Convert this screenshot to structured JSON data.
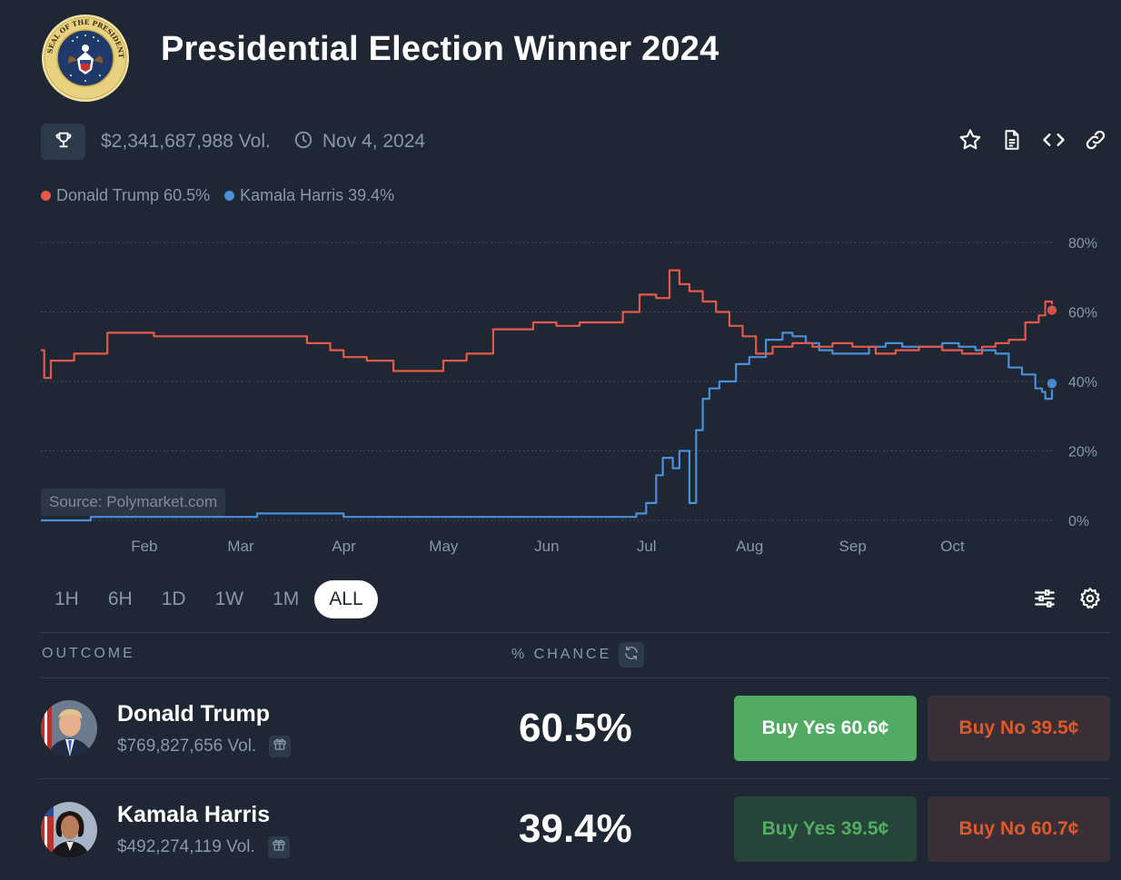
{
  "header": {
    "title": "Presidential Election Winner 2024",
    "seal_text": "SEAL OF THE PRESIDENT OF THE UNITED STATES"
  },
  "meta": {
    "volume": "$2,341,687,988 Vol.",
    "date": "Nov 4, 2024"
  },
  "legend": [
    {
      "label": "Donald Trump 60.5%",
      "color": "#e5584a"
    },
    {
      "label": "Kamala Harris 39.4%",
      "color": "#4a90d9"
    }
  ],
  "chart_data": {
    "type": "line",
    "y_tick_labels": [
      "80%",
      "60%",
      "40%",
      "20%",
      "0%"
    ],
    "y_ticks": [
      80,
      60,
      40,
      20,
      0
    ],
    "ylim": [
      0,
      80
    ],
    "x_tick_labels": [
      "Feb",
      "Mar",
      "Apr",
      "May",
      "Jun",
      "Jul",
      "Aug",
      "Sep",
      "Oct"
    ],
    "x_ticks": [
      "2024-02-01",
      "2024-03-01",
      "2024-04-01",
      "2024-05-01",
      "2024-06-01",
      "2024-07-01",
      "2024-08-01",
      "2024-09-01",
      "2024-10-01"
    ],
    "xlim": [
      "2024-01-05",
      "2024-11-04"
    ],
    "grid": true,
    "source": "Source: Polymarket.com",
    "series": [
      {
        "name": "Donald Trump",
        "color": "#e5584a",
        "x": [
          "2024-01-05",
          "2024-01-06",
          "2024-01-08",
          "2024-01-15",
          "2024-01-23",
          "2024-01-25",
          "2024-02-08",
          "2024-02-15",
          "2024-02-25",
          "2024-03-05",
          "2024-03-15",
          "2024-03-25",
          "2024-04-01",
          "2024-04-05",
          "2024-04-12",
          "2024-04-20",
          "2024-04-28",
          "2024-05-05",
          "2024-05-12",
          "2024-05-20",
          "2024-05-27",
          "2024-06-01",
          "2024-06-08",
          "2024-06-15",
          "2024-06-22",
          "2024-06-28",
          "2024-07-03",
          "2024-07-08",
          "2024-07-12",
          "2024-07-15",
          "2024-07-18",
          "2024-07-22",
          "2024-07-26",
          "2024-07-30",
          "2024-08-03",
          "2024-08-07",
          "2024-08-12",
          "2024-08-18",
          "2024-08-24",
          "2024-08-30",
          "2024-09-05",
          "2024-09-12",
          "2024-09-18",
          "2024-09-25",
          "2024-10-02",
          "2024-10-08",
          "2024-10-14",
          "2024-10-18",
          "2024-10-22",
          "2024-10-27",
          "2024-10-31",
          "2024-11-02",
          "2024-11-04"
        ],
        "values": [
          49,
          41,
          46,
          48,
          48,
          54,
          53,
          53,
          53,
          53,
          53,
          51,
          49,
          47,
          46,
          43,
          43,
          46,
          48,
          55,
          55,
          57,
          56,
          57,
          57,
          60,
          65,
          64,
          72,
          68,
          66,
          63,
          60,
          56,
          53,
          48,
          50,
          51,
          50,
          51,
          50,
          48,
          49,
          50,
          49,
          48,
          50,
          51,
          52,
          57,
          59,
          63,
          60.5
        ]
      },
      {
        "name": "Kamala Harris",
        "color": "#4a90d9",
        "x": [
          "2024-01-05",
          "2024-01-20",
          "2024-02-15",
          "2024-03-10",
          "2024-04-05",
          "2024-05-01",
          "2024-05-26",
          "2024-06-20",
          "2024-07-02",
          "2024-07-05",
          "2024-07-08",
          "2024-07-10",
          "2024-07-13",
          "2024-07-15",
          "2024-07-18",
          "2024-07-20",
          "2024-07-22",
          "2024-07-24",
          "2024-07-27",
          "2024-08-01",
          "2024-08-05",
          "2024-08-10",
          "2024-08-15",
          "2024-08-18",
          "2024-08-22",
          "2024-08-26",
          "2024-08-30",
          "2024-09-05",
          "2024-09-10",
          "2024-09-15",
          "2024-09-20",
          "2024-09-25",
          "2024-10-02",
          "2024-10-07",
          "2024-10-12",
          "2024-10-18",
          "2024-10-22",
          "2024-10-26",
          "2024-10-30",
          "2024-11-01",
          "2024-11-02",
          "2024-11-04"
        ],
        "values": [
          0,
          1,
          1,
          2,
          1,
          1,
          1,
          1,
          2,
          5,
          13,
          18,
          15,
          20,
          5,
          26,
          35,
          38,
          40,
          45,
          47,
          52,
          54,
          53,
          51,
          49,
          48,
          48,
          50,
          51,
          50,
          50,
          51,
          50,
          49,
          48,
          44,
          42,
          38,
          37,
          35,
          39.4
        ]
      }
    ]
  },
  "ranges": {
    "items": [
      "1H",
      "6H",
      "1D",
      "1W",
      "1M",
      "ALL"
    ],
    "active": "ALL"
  },
  "table": {
    "col_outcome": "OUTCOME",
    "col_chance": "% CHANCE",
    "rows": [
      {
        "name": "Donald Trump",
        "volume": "$769,827,656 Vol.",
        "chance": "60.5%",
        "buy_yes": "Buy Yes 60.6¢",
        "buy_no": "Buy No 39.5¢",
        "accent": "#e5584a"
      },
      {
        "name": "Kamala Harris",
        "volume": "$492,274,119 Vol.",
        "chance": "39.4%",
        "buy_yes": "Buy Yes 39.5¢",
        "buy_no": "Buy No 60.7¢",
        "accent": "#4a90d9"
      }
    ]
  },
  "icons": {
    "trophy": "trophy-icon",
    "clock": "clock-icon",
    "star": "star-icon",
    "document": "document-icon",
    "embed": "code-icon",
    "link": "link-icon",
    "filters": "sliders-icon",
    "settings": "gear-icon",
    "refresh": "refresh-icon",
    "gift": "gift-icon"
  }
}
